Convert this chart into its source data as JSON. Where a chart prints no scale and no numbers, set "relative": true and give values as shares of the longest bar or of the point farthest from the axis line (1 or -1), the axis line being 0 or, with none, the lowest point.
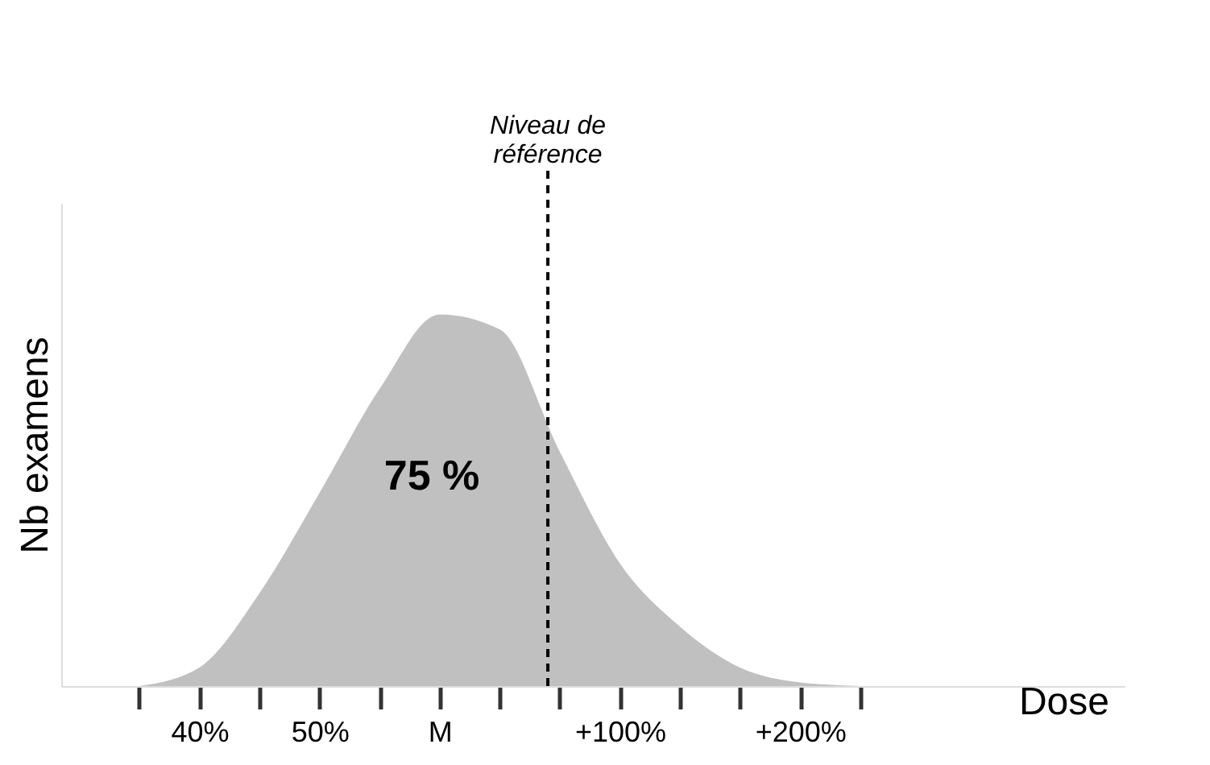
{
  "chart_data": {
    "type": "area",
    "relative": true,
    "xlabel": "Dose",
    "ylabel": "Nb examens",
    "categories": [
      null,
      "40%",
      null,
      "50%",
      null,
      "M",
      null,
      null,
      "+100%",
      null,
      null,
      "+200%",
      null
    ],
    "series": [
      {
        "color": "#c0c0c0",
        "values": [
          0,
          0.05,
          0.25,
          0.52,
          0.8,
          1,
          0.96,
          0.63,
          0.33,
          0.16,
          0.05,
          0.01,
          0
        ]
      }
    ],
    "annotations": [
      "Niveau de référence",
      "75 %"
    ],
    "grid": false
  }
}
